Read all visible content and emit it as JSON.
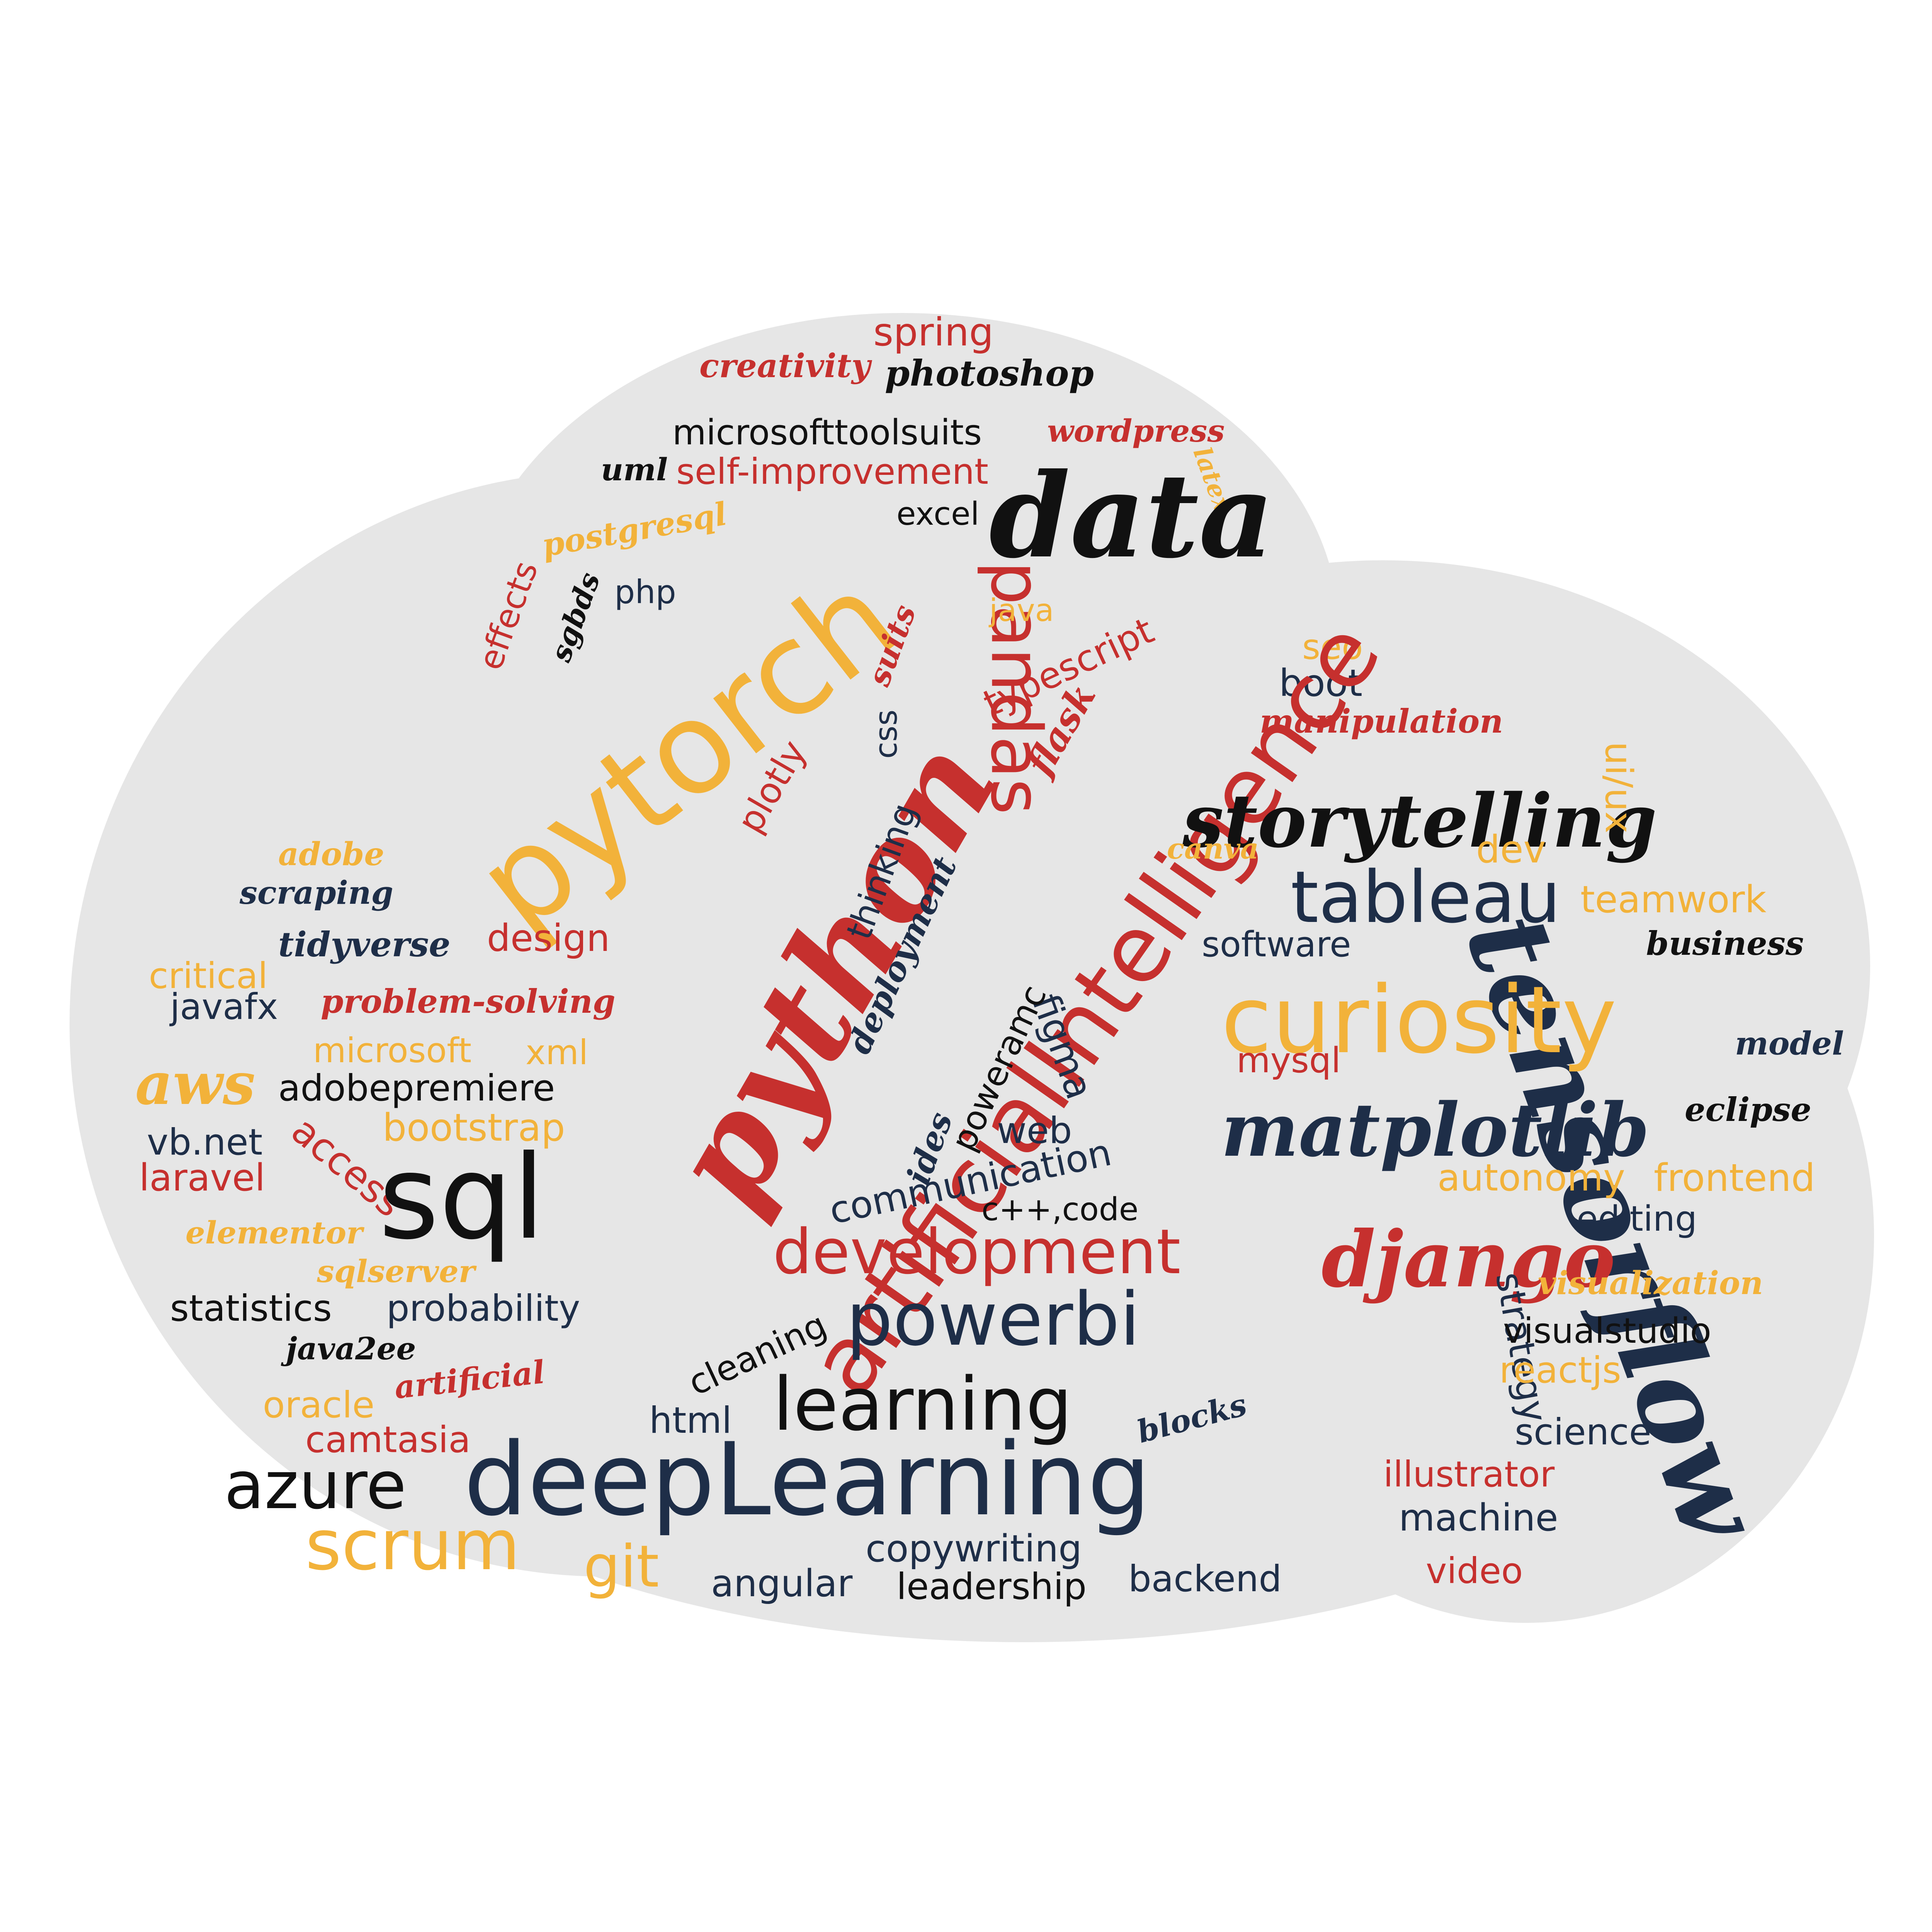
{
  "background_color": "#ffffff",
  "cloud": {
    "fill": "#e6e6e6",
    "stroke": "#d2d2d2"
  },
  "palette": {
    "red": "#c6302e",
    "navy": "#1e2e48",
    "gold": "#f2b23a",
    "black": "#111111"
  },
  "words": [
    {
      "text": "spring",
      "color": "red"
    },
    {
      "text": "creativity",
      "color": "red"
    },
    {
      "text": "photoshop",
      "color": "black"
    },
    {
      "text": "microsofttoolsuits",
      "color": "black"
    },
    {
      "text": "wordpress",
      "color": "red"
    },
    {
      "text": "uml",
      "color": "black"
    },
    {
      "text": "self-improvement",
      "color": "red"
    },
    {
      "text": "latex",
      "color": "gold"
    },
    {
      "text": "excel",
      "color": "black"
    },
    {
      "text": "data",
      "color": "black"
    },
    {
      "text": "postgresql",
      "color": "gold"
    },
    {
      "text": "effects",
      "color": "red"
    },
    {
      "text": "sgbds",
      "color": "black"
    },
    {
      "text": "php",
      "color": "navy"
    },
    {
      "text": "pytorch",
      "color": "gold"
    },
    {
      "text": "python",
      "color": "red"
    },
    {
      "text": "suits",
      "color": "red"
    },
    {
      "text": "pandas",
      "color": "red"
    },
    {
      "text": "java",
      "color": "gold"
    },
    {
      "text": "seo",
      "color": "gold"
    },
    {
      "text": "typescript",
      "color": "red"
    },
    {
      "text": "boot",
      "color": "navy"
    },
    {
      "text": "css",
      "color": "navy"
    },
    {
      "text": "flask",
      "color": "red"
    },
    {
      "text": "manipulation",
      "color": "red"
    },
    {
      "text": "artificialIntelligence",
      "color": "red"
    },
    {
      "text": "plotly",
      "color": "red"
    },
    {
      "text": "storytelling",
      "color": "black"
    },
    {
      "text": "ui/ux",
      "color": "gold"
    },
    {
      "text": "adobe",
      "color": "gold"
    },
    {
      "text": "canva",
      "color": "gold"
    },
    {
      "text": "dev",
      "color": "gold"
    },
    {
      "text": "thinking",
      "color": "navy"
    },
    {
      "text": "scraping",
      "color": "navy"
    },
    {
      "text": "tableau",
      "color": "navy"
    },
    {
      "text": "teamwork",
      "color": "gold"
    },
    {
      "text": "deployment",
      "color": "navy"
    },
    {
      "text": "design",
      "color": "red"
    },
    {
      "text": "tidyverse",
      "color": "navy"
    },
    {
      "text": "software",
      "color": "navy"
    },
    {
      "text": "business",
      "color": "black"
    },
    {
      "text": "critical",
      "color": "gold"
    },
    {
      "text": "tensorflow",
      "color": "navy"
    },
    {
      "text": "curiosity",
      "color": "gold"
    },
    {
      "text": "javafx",
      "color": "navy"
    },
    {
      "text": "problem-solving",
      "color": "red"
    },
    {
      "text": "model",
      "color": "navy"
    },
    {
      "text": "microsoft",
      "color": "gold"
    },
    {
      "text": "xml",
      "color": "gold"
    },
    {
      "text": "figma",
      "color": "navy"
    },
    {
      "text": "poweramc",
      "color": "black"
    },
    {
      "text": "mysql",
      "color": "red"
    },
    {
      "text": "aws",
      "color": "gold"
    },
    {
      "text": "adobepremiere",
      "color": "black"
    },
    {
      "text": "matplotlib",
      "color": "navy"
    },
    {
      "text": "eclipse",
      "color": "black"
    },
    {
      "text": "web",
      "color": "navy"
    },
    {
      "text": "bootstrap",
      "color": "gold"
    },
    {
      "text": "vb.net",
      "color": "navy"
    },
    {
      "text": "access",
      "color": "red"
    },
    {
      "text": "ides",
      "color": "navy"
    },
    {
      "text": "communication",
      "color": "navy"
    },
    {
      "text": "sql",
      "color": "black"
    },
    {
      "text": "autonomy",
      "color": "gold"
    },
    {
      "text": "frontend",
      "color": "gold"
    },
    {
      "text": "laravel",
      "color": "red"
    },
    {
      "text": "c++,code",
      "color": "black"
    },
    {
      "text": "editing",
      "color": "navy"
    },
    {
      "text": "elementor",
      "color": "gold"
    },
    {
      "text": "django",
      "color": "red"
    },
    {
      "text": "development",
      "color": "red"
    },
    {
      "text": "sqlserver",
      "color": "gold"
    },
    {
      "text": "visualization",
      "color": "gold"
    },
    {
      "text": "strategy",
      "color": "navy"
    },
    {
      "text": "statistics",
      "color": "black"
    },
    {
      "text": "probability",
      "color": "navy"
    },
    {
      "text": "powerbi",
      "color": "navy"
    },
    {
      "text": "cleaning",
      "color": "black"
    },
    {
      "text": "visualstudio",
      "color": "black"
    },
    {
      "text": "java2ee",
      "color": "black"
    },
    {
      "text": "reactjs",
      "color": "gold"
    },
    {
      "text": "artificial",
      "color": "red"
    },
    {
      "text": "oracle",
      "color": "gold"
    },
    {
      "text": "learning",
      "color": "black"
    },
    {
      "text": "html",
      "color": "navy"
    },
    {
      "text": "blocks",
      "color": "navy"
    },
    {
      "text": "science",
      "color": "navy"
    },
    {
      "text": "camtasia",
      "color": "red"
    },
    {
      "text": "azure",
      "color": "black"
    },
    {
      "text": "deepLearning",
      "color": "navy"
    },
    {
      "text": "illustrator",
      "color": "red"
    },
    {
      "text": "machine",
      "color": "navy"
    },
    {
      "text": "scrum",
      "color": "gold"
    },
    {
      "text": "git",
      "color": "gold"
    },
    {
      "text": "copywriting",
      "color": "navy"
    },
    {
      "text": "angular",
      "color": "navy"
    },
    {
      "text": "leadership",
      "color": "black"
    },
    {
      "text": "backend",
      "color": "navy"
    },
    {
      "text": "video",
      "color": "red"
    }
  ]
}
